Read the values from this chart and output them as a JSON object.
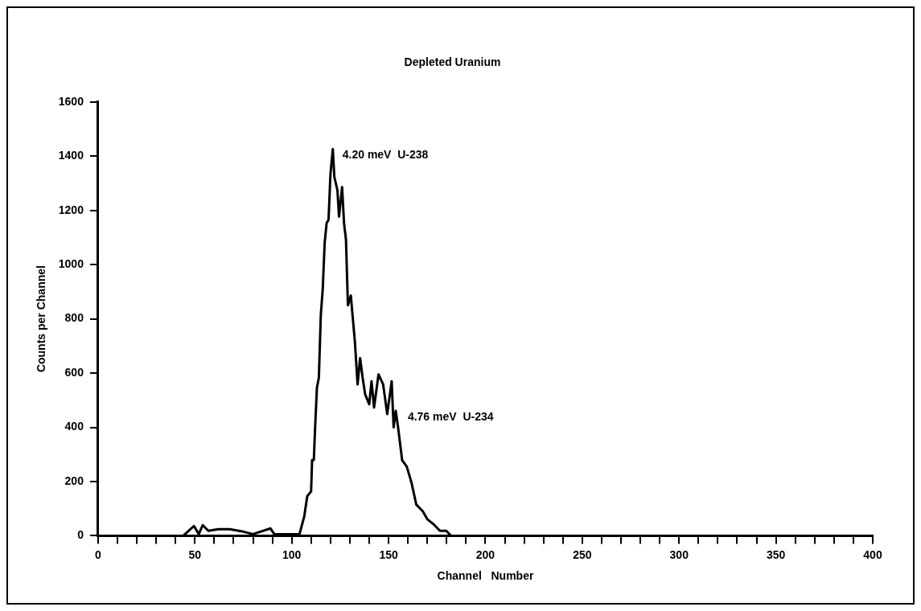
{
  "chart_data": {
    "type": "line",
    "title": "Depleted Uranium",
    "xlabel": "Channel   Number",
    "ylabel": "Counts per Channel",
    "series": [
      {
        "color": "#000000",
        "x": [
          0,
          40,
          44,
          49.5,
          52,
          54,
          57,
          62,
          68,
          75,
          80,
          89,
          91,
          104,
          106.5,
          108,
          110,
          110.5,
          111.4,
          112,
          113,
          114,
          115,
          116,
          117,
          118,
          119,
          120,
          121.2,
          122,
          123.6,
          124.4,
          126,
          127,
          128,
          129,
          130.5,
          132.6,
          134,
          135.3,
          136.6,
          137.9,
          140,
          141.2,
          142.5,
          144.8,
          147.2,
          149.3,
          151.6,
          152.6,
          153.7,
          154.9,
          157,
          159.4,
          161.9,
          164.3,
          167.6,
          170,
          173.3,
          176.5,
          179.8,
          182.2,
          200,
          400
        ],
        "values": [
          0,
          0,
          0,
          36,
          6,
          39,
          18,
          24,
          24,
          15,
          6,
          27,
          6,
          6,
          73,
          146,
          164,
          279,
          279,
          388,
          546,
          583,
          813,
          910,
          1080,
          1153,
          1165,
          1335,
          1426,
          1323,
          1274,
          1177,
          1286,
          1153,
          1092,
          850,
          886,
          716,
          558,
          655,
          583,
          522,
          485,
          570,
          473,
          595,
          558,
          449,
          570,
          400,
          461,
          400,
          279,
          255,
          194,
          115,
          91,
          61,
          42,
          18,
          18,
          0,
          0,
          0
        ]
      }
    ],
    "annotations": [
      {
        "text": "4.20 meV  U-238",
        "x": 121.2,
        "y": 1426
      },
      {
        "text": "4.76 meV  U-234",
        "x": 154.9,
        "y": 461
      }
    ],
    "xlim": [
      0,
      400
    ],
    "ylim": [
      0,
      1600
    ],
    "xticks": [
      0,
      {
        "value": 10,
        "label": null
      },
      {
        "value": 20,
        "label": null
      },
      {
        "value": 30,
        "label": null
      },
      {
        "value": 40,
        "label": null
      },
      50,
      {
        "value": 60,
        "label": null
      },
      {
        "value": 70,
        "label": null
      },
      {
        "value": 80,
        "label": null
      },
      {
        "value": 90,
        "label": null
      },
      100,
      {
        "value": 110,
        "label": null
      },
      {
        "value": 120,
        "label": null
      },
      {
        "value": 130,
        "label": null
      },
      {
        "value": 140,
        "label": null
      },
      150,
      {
        "value": 160,
        "label": null
      },
      {
        "value": 170,
        "label": null
      },
      {
        "value": 180,
        "label": null
      },
      {
        "value": 190,
        "label": null
      },
      200,
      {
        "value": 210,
        "label": null
      },
      {
        "value": 220,
        "label": null
      },
      {
        "value": 230,
        "label": null
      },
      {
        "value": 240,
        "label": null
      },
      250,
      {
        "value": 260,
        "label": null
      },
      {
        "value": 270,
        "label": null
      },
      {
        "value": 280,
        "label": null
      },
      {
        "value": 290,
        "label": null
      },
      300,
      {
        "value": 310,
        "label": null
      },
      {
        "value": 320,
        "label": null
      },
      {
        "value": 330,
        "label": null
      },
      {
        "value": 340,
        "label": null
      },
      350,
      {
        "value": 360,
        "label": null
      },
      {
        "value": 370,
        "label": null
      },
      {
        "value": 380,
        "label": null
      },
      {
        "value": 390,
        "label": null
      },
      400
    ],
    "yticks": [
      0,
      200,
      400,
      600,
      800,
      1000,
      1200,
      1400,
      1600
    ],
    "grid": false,
    "legend": false,
    "marker": "none",
    "line_style": "solid"
  }
}
